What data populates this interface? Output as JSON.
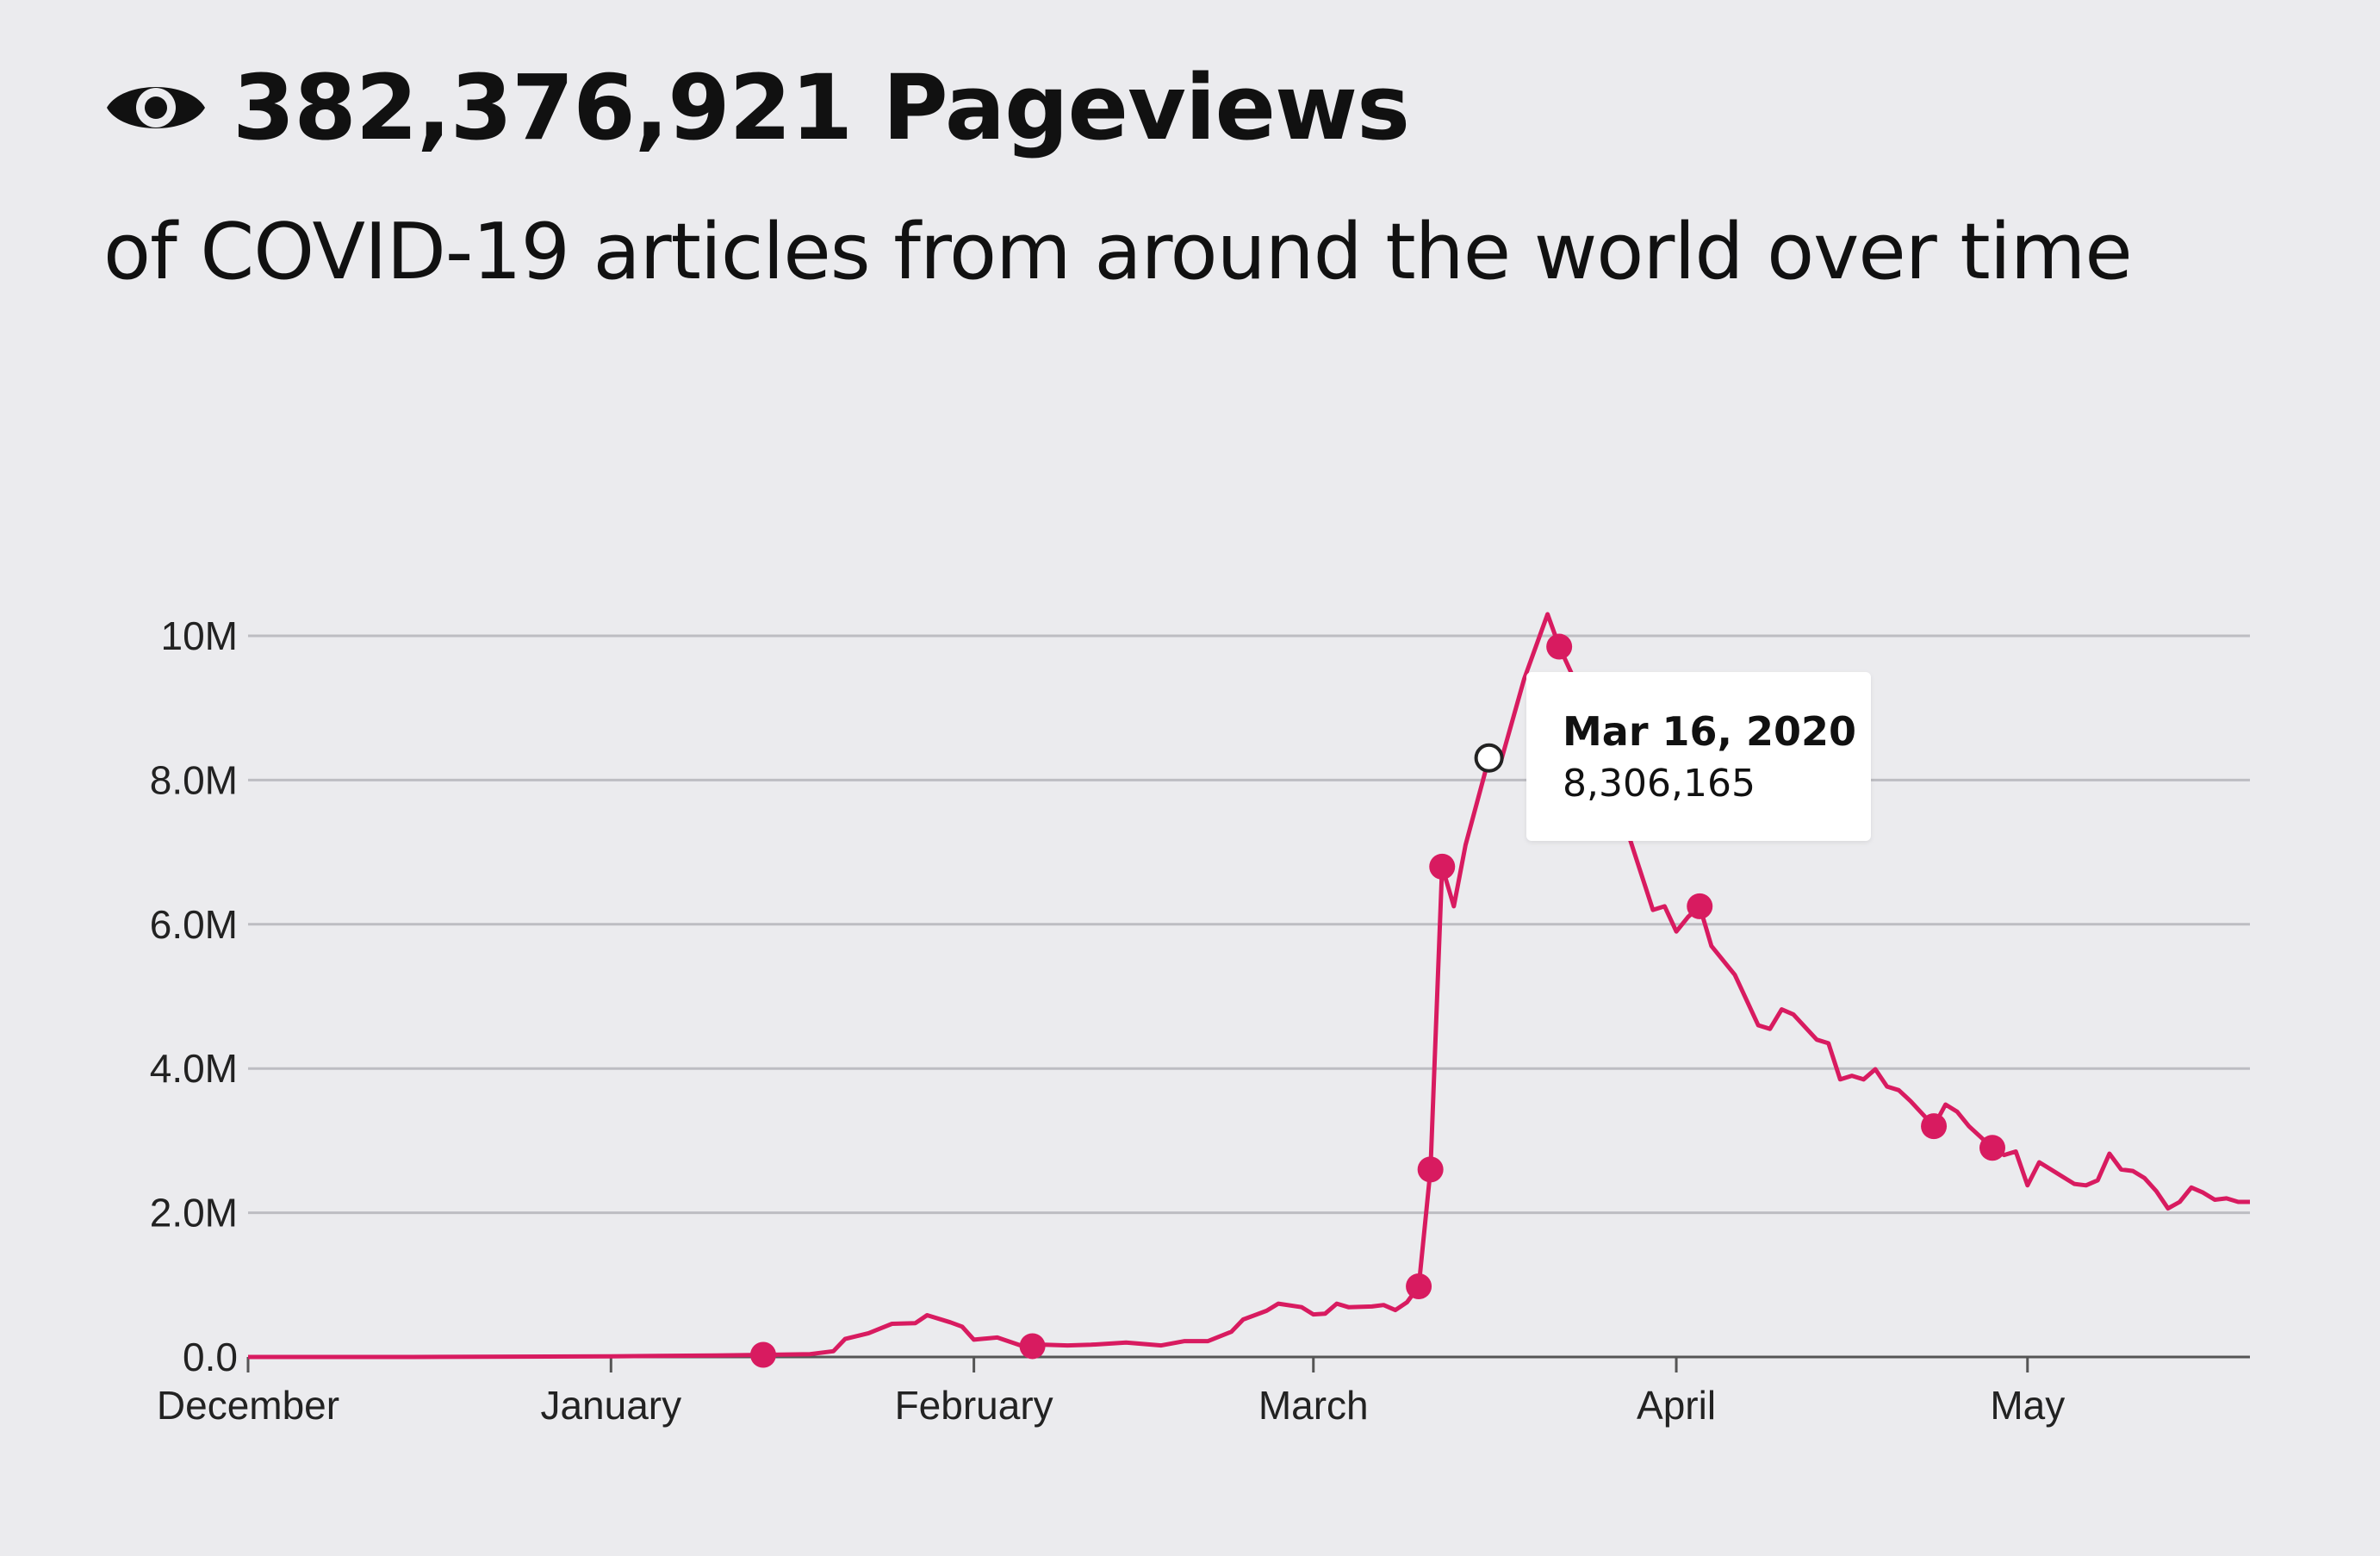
{
  "header": {
    "icon": "eye-icon",
    "title": "382,376,921 Pageviews",
    "subtitle": "of COVID-19 articles from around the world over time"
  },
  "tooltip": {
    "date": "Mar 16, 2020",
    "value": "8,306,165"
  },
  "colors": {
    "line": "#d81b60",
    "grid": "#bdbdc2",
    "axis": "#555555",
    "background": "#ebebee"
  },
  "chart_data": {
    "type": "line",
    "title": "",
    "xlabel": "",
    "ylabel": "",
    "x_ticks": [
      "December",
      "January",
      "February",
      "March",
      "April",
      "May"
    ],
    "y_ticks": [
      "0.0",
      "2.0M",
      "4.0M",
      "6.0M",
      "8.0M",
      "10M"
    ],
    "xlim": [
      "2019-12-01",
      "2020-05-20"
    ],
    "ylim": [
      0,
      10000000
    ],
    "grid": true,
    "series": [
      {
        "values": [
          [
            "2019-12-01",
            0
          ],
          [
            "2019-12-15",
            0
          ],
          [
            "2020-01-01",
            10000
          ],
          [
            "2020-01-10",
            20000
          ],
          [
            "2020-01-18",
            40000
          ],
          [
            "2020-01-20",
            80000
          ],
          [
            "2020-01-21",
            250000
          ],
          [
            "2020-01-23",
            330000
          ],
          [
            "2020-01-25",
            460000
          ],
          [
            "2020-01-27",
            470000
          ],
          [
            "2020-01-28",
            580000
          ],
          [
            "2020-01-30",
            480000
          ],
          [
            "2020-01-31",
            420000
          ],
          [
            "2020-02-01",
            240000
          ],
          [
            "2020-02-03",
            270000
          ],
          [
            "2020-02-05",
            160000
          ],
          [
            "2020-02-07",
            170000
          ],
          [
            "2020-02-09",
            160000
          ],
          [
            "2020-02-11",
            170000
          ],
          [
            "2020-02-14",
            200000
          ],
          [
            "2020-02-17",
            160000
          ],
          [
            "2020-02-19",
            220000
          ],
          [
            "2020-02-21",
            220000
          ],
          [
            "2020-02-23",
            350000
          ],
          [
            "2020-02-24",
            520000
          ],
          [
            "2020-02-26",
            640000
          ],
          [
            "2020-02-27",
            740000
          ],
          [
            "2020-02-29",
            690000
          ],
          [
            "2020-03-01",
            590000
          ],
          [
            "2020-03-02",
            600000
          ],
          [
            "2020-03-03",
            740000
          ],
          [
            "2020-03-04",
            690000
          ],
          [
            "2020-03-06",
            700000
          ],
          [
            "2020-03-07",
            720000
          ],
          [
            "2020-03-08",
            650000
          ],
          [
            "2020-03-09",
            760000
          ],
          [
            "2020-03-10",
            980000
          ],
          [
            "2020-03-11",
            2600000
          ],
          [
            "2020-03-12",
            6800000
          ],
          [
            "2020-03-13",
            6250000
          ],
          [
            "2020-03-14",
            7100000
          ],
          [
            "2020-03-16",
            8306165
          ],
          [
            "2020-03-17",
            8250000
          ],
          [
            "2020-03-19",
            9400000
          ],
          [
            "2020-03-21",
            10300000
          ],
          [
            "2020-03-22",
            9850000
          ],
          [
            "2020-03-23",
            9500000
          ],
          [
            "2020-03-26",
            8300000
          ],
          [
            "2020-03-28",
            7200000
          ],
          [
            "2020-03-30",
            6200000
          ],
          [
            "2020-03-31",
            6250000
          ],
          [
            "2020-04-01",
            5900000
          ],
          [
            "2020-04-02",
            6100000
          ],
          [
            "2020-04-03",
            6250000
          ],
          [
            "2020-04-04",
            5700000
          ],
          [
            "2020-04-06",
            5300000
          ],
          [
            "2020-04-08",
            4600000
          ],
          [
            "2020-04-09",
            4550000
          ],
          [
            "2020-04-10",
            4820000
          ],
          [
            "2020-04-11",
            4750000
          ],
          [
            "2020-04-13",
            4400000
          ],
          [
            "2020-04-14",
            4350000
          ],
          [
            "2020-04-15",
            3850000
          ],
          [
            "2020-04-16",
            3900000
          ],
          [
            "2020-04-17",
            3850000
          ],
          [
            "2020-04-18",
            3990000
          ],
          [
            "2020-04-19",
            3750000
          ],
          [
            "2020-04-20",
            3700000
          ],
          [
            "2020-04-21",
            3550000
          ],
          [
            "2020-04-23",
            3200000
          ],
          [
            "2020-04-24",
            3500000
          ],
          [
            "2020-04-25",
            3400000
          ],
          [
            "2020-04-26",
            3200000
          ],
          [
            "2020-04-27",
            3050000
          ],
          [
            "2020-04-28",
            2900000
          ],
          [
            "2020-04-29",
            2800000
          ],
          [
            "2020-04-30",
            2850000
          ],
          [
            "2020-05-01",
            2380000
          ],
          [
            "2020-05-02",
            2700000
          ],
          [
            "2020-05-03",
            2600000
          ],
          [
            "2020-05-04",
            2500000
          ],
          [
            "2020-05-05",
            2400000
          ],
          [
            "2020-05-06",
            2380000
          ],
          [
            "2020-05-07",
            2450000
          ],
          [
            "2020-05-08",
            2820000
          ],
          [
            "2020-05-09",
            2600000
          ],
          [
            "2020-05-10",
            2580000
          ],
          [
            "2020-05-11",
            2480000
          ],
          [
            "2020-05-12",
            2300000
          ],
          [
            "2020-05-13",
            2060000
          ],
          [
            "2020-05-14",
            2150000
          ],
          [
            "2020-05-15",
            2350000
          ],
          [
            "2020-05-16",
            2280000
          ],
          [
            "2020-05-17",
            2180000
          ],
          [
            "2020-05-18",
            2200000
          ],
          [
            "2020-05-19",
            2150000
          ],
          [
            "2020-05-20",
            2150000
          ]
        ]
      }
    ],
    "markers": [
      [
        "2020-01-14",
        30000
      ],
      [
        "2020-02-06",
        150000
      ],
      [
        "2020-03-10",
        980000
      ],
      [
        "2020-03-11",
        2600000
      ],
      [
        "2020-03-12",
        6800000
      ],
      [
        "2020-03-22",
        9850000
      ],
      [
        "2020-04-03",
        6250000
      ],
      [
        "2020-04-23",
        3200000
      ],
      [
        "2020-04-28",
        2900000
      ]
    ],
    "highlight": {
      "date": "2020-03-16",
      "value": 8306165,
      "label_date": "Mar 16, 2020",
      "label_value": "8,306,165"
    }
  }
}
